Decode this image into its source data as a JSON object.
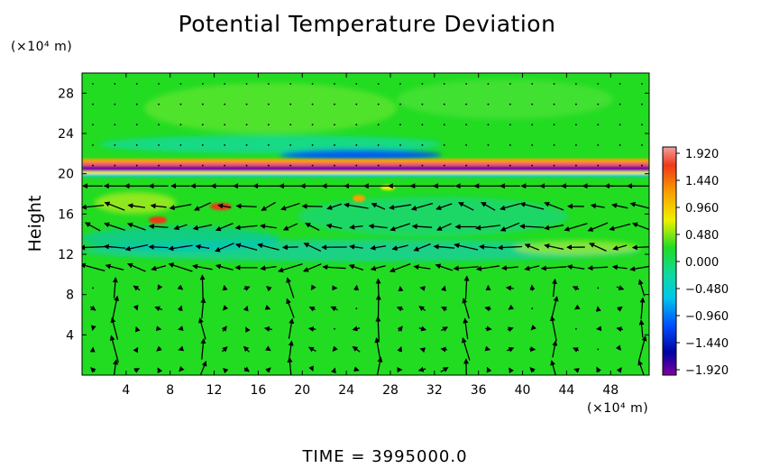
{
  "chart_data": {
    "type": "heatmap",
    "title": "Potential Temperature Deviation",
    "ylabel": "Height",
    "y_unit": "(×10⁴ m)",
    "x_unit": "(×10⁴ m)",
    "x_ticks": [
      4,
      8,
      12,
      16,
      20,
      24,
      28,
      32,
      36,
      40,
      44,
      48
    ],
    "y_ticks": [
      4,
      8,
      12,
      16,
      20,
      24,
      28
    ],
    "xlim": [
      0,
      51.5
    ],
    "ylim": [
      0,
      30
    ],
    "colorbar": {
      "labels": [
        "1.920",
        "1.440",
        "0.960",
        "0.480",
        "0.000",
        "−0.480",
        "−0.960",
        "−1.440",
        "−1.920"
      ],
      "min": -1.92,
      "max": 1.92,
      "colors": [
        "#e87878",
        "#f03818",
        "#f8a000",
        "#f0f000",
        "#22dc22",
        "#00c8c8",
        "#0070ff",
        "#0000a0",
        "#8000a0"
      ]
    },
    "features": [
      {
        "y": 20.5,
        "value": -1.9,
        "extent": "full width"
      },
      {
        "y": 21.0,
        "value": 1.5,
        "extent": "full width"
      },
      {
        "y": 22.5,
        "value": -1.0,
        "extent": "x 20-36"
      },
      {
        "y": 14.5,
        "value": 1.2,
        "extent": "x 6-9"
      },
      {
        "y": 16.3,
        "value": 1.6,
        "extent": "x 11-13"
      },
      {
        "y": 13.0,
        "value": -0.5,
        "extent": "x 6-52"
      }
    ],
    "vector_field": "wind arrows overlaid on grid",
    "time": "TIME  =  3995000.0"
  }
}
